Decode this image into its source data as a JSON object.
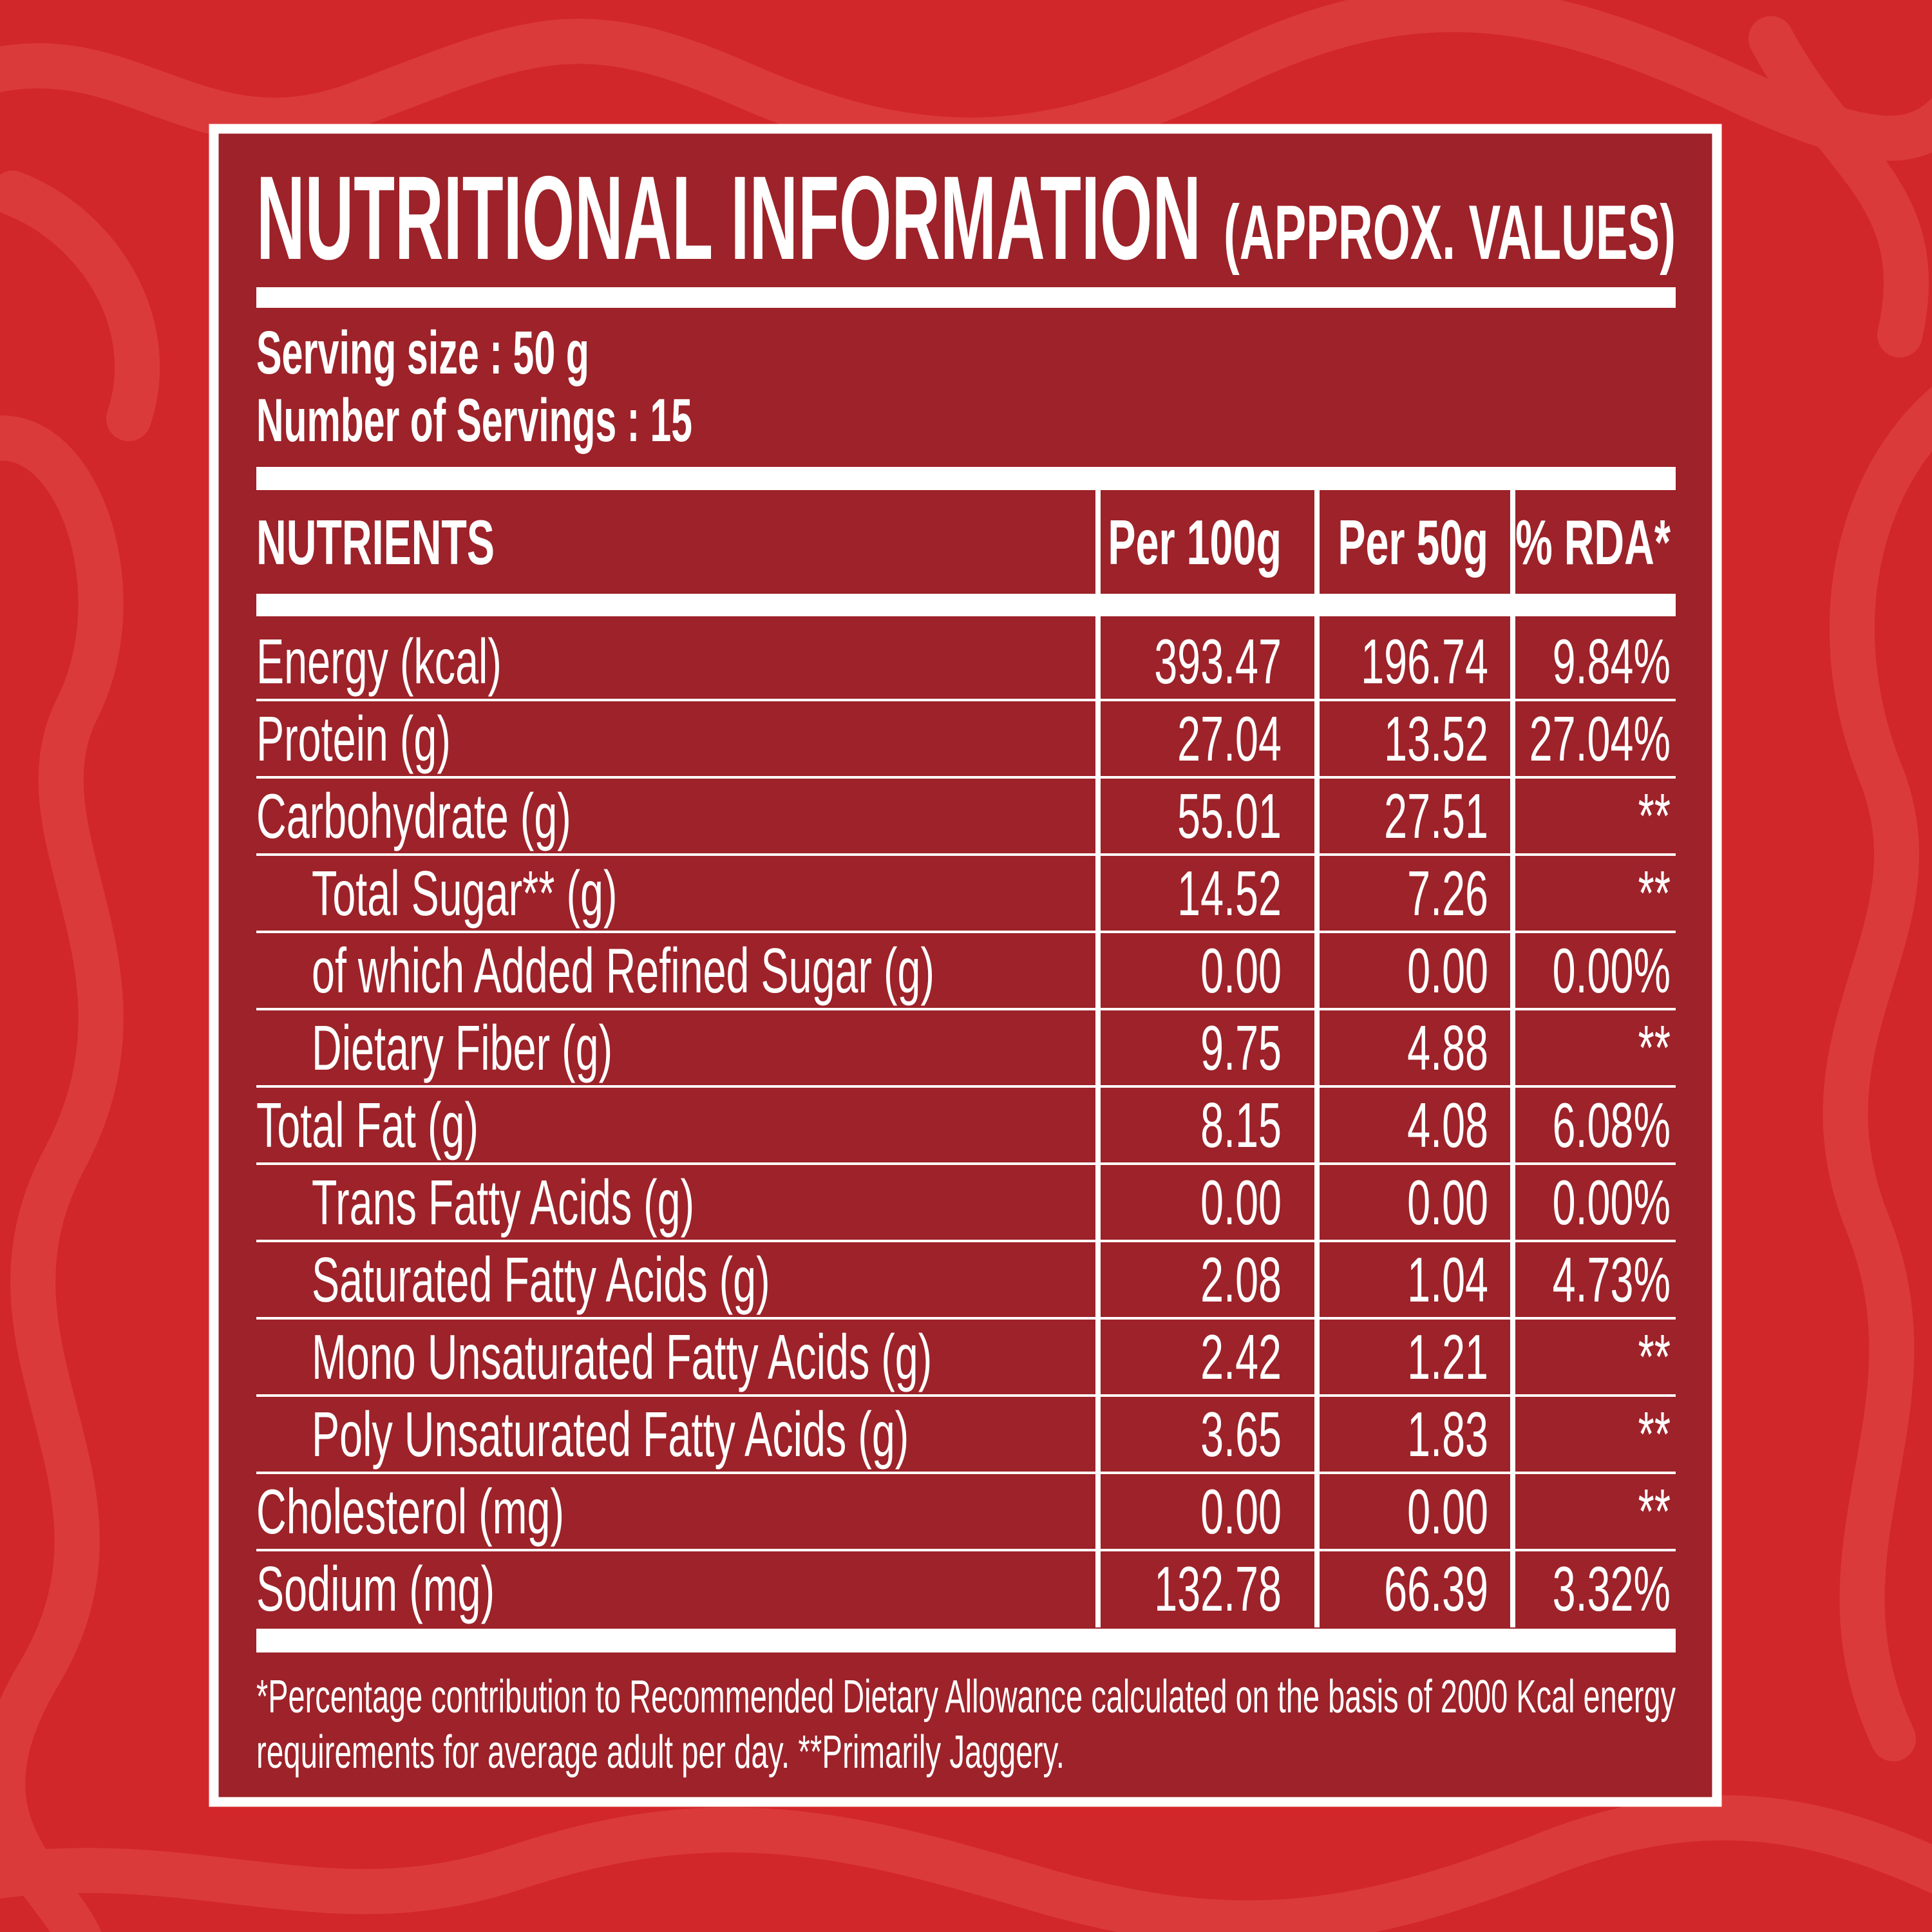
{
  "header": {
    "title": "NUTRITIONAL INFORMATION",
    "subtitle": "(APPROX. VALUES)"
  },
  "serving": {
    "size": "Serving size : 50 g",
    "count": "Number of Servings : 15"
  },
  "table": {
    "header": [
      "NUTRIENTS",
      "Per 100g",
      "Per 50g",
      "% RDA*"
    ],
    "rows": [
      [
        "Energy (kcal)",
        "393.47",
        "196.74",
        "9.84%"
      ],
      [
        "Protein (g)",
        "27.04",
        "13.52",
        "27.04%"
      ],
      [
        "Carbohydrate (g)",
        "55.01",
        "27.51",
        "**"
      ],
      [
        "Total Sugar** (g)",
        "14.52",
        "7.26",
        "**"
      ],
      [
        "of which Added Refined Sugar (g)",
        "0.00",
        "0.00",
        "0.00%"
      ],
      [
        "Dietary Fiber (g)",
        "9.75",
        "4.88",
        "**"
      ],
      [
        "Total Fat (g)",
        "8.15",
        "4.08",
        "6.08%"
      ],
      [
        "Trans Fatty Acids (g)",
        "0.00",
        "0.00",
        "0.00%"
      ],
      [
        "Saturated Fatty Acids (g)",
        "2.08",
        "1.04",
        "4.73%"
      ],
      [
        "Mono Unsaturated Fatty Acids (g)",
        "2.42",
        "1.21",
        "**"
      ],
      [
        "Poly Unsaturated Fatty Acids (g)",
        "3.65",
        "1.83",
        "**"
      ],
      [
        "Cholesterol (mg)",
        "0.00",
        "0.00",
        "**"
      ],
      [
        "Sodium (mg)",
        "132.78",
        "66.39",
        "3.32%"
      ]
    ]
  },
  "footnote": [
    "*Percentage contribution to Recommended Dietary Allowance calculated on the basis of 2000 Kcal energy",
    "requirements for average adult per day. **Primarily Jaggery."
  ]
}
